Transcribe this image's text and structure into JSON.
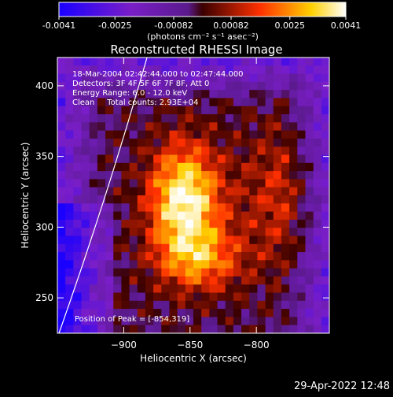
{
  "chart_data": {
    "type": "heatmap",
    "title": "Reconstructed RHESSI Image",
    "xlabel": "Heliocentric X (arcsec)",
    "ylabel": "Heliocentric Y (arcsec)",
    "xlim": [
      -950,
      -745
    ],
    "ylim": [
      225,
      420
    ],
    "x_ticks": [
      -900,
      -850,
      -800
    ],
    "y_ticks": [
      250,
      300,
      350,
      400
    ],
    "colorbar": {
      "min": -0.0041,
      "max": 0.0041,
      "tick_values": [
        -0.0041,
        -0.0025,
        -0.00082,
        0.00082,
        0.0025,
        0.0041
      ],
      "tick_labels": [
        "-0.0041",
        "-0.0025",
        "-0.00082",
        "0.00082",
        "0.0025",
        "0.0041"
      ],
      "unit_label": "(photons cm⁻² s⁻¹ asec⁻²)",
      "colors": [
        "#1a00ff",
        "#7a1ec8",
        "#5a1a8c",
        "#3a0000",
        "#ff3000",
        "#ffd000",
        "#ffffff"
      ]
    },
    "annotations": [
      "18-Mar-2004 02:42:44.000 to 02:47:44.000",
      "Detectors: 3F 4F 5F 6F 7F 8F, Att 0",
      "Energy Range: 6.0 - 12.0 keV",
      "Clean     Total counts: 2.93E+04"
    ],
    "peak_label": "Position of Peak = [-854,319]",
    "peak": [
      -854,
      319
    ],
    "limb_line_color": "#ffffff"
  },
  "footer": {
    "timestamp": "29-Apr-2022 12:48"
  }
}
